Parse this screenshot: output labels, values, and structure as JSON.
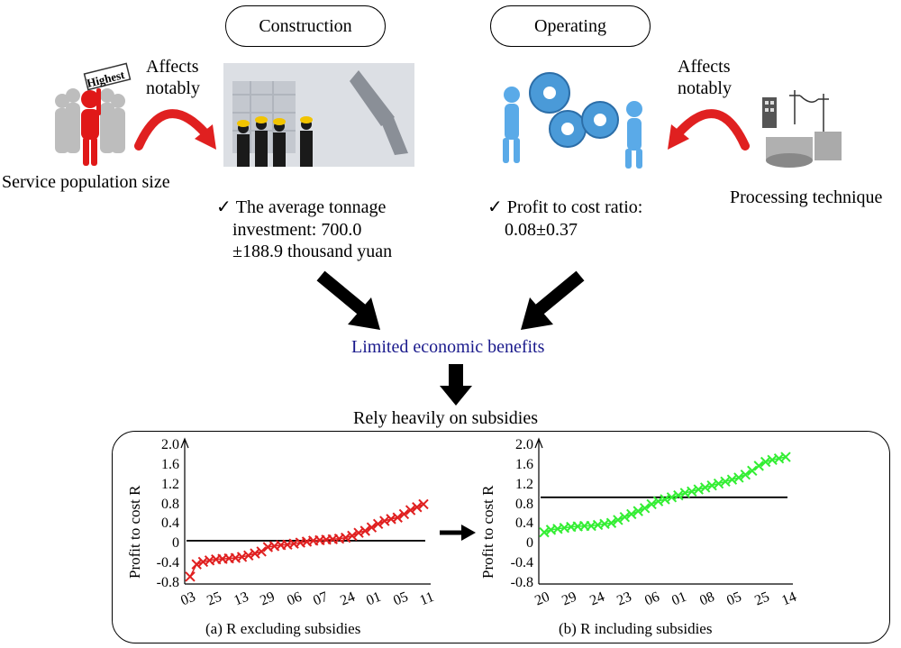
{
  "header": {
    "construction_label": "Construction",
    "operating_label": "Operating"
  },
  "left": {
    "affects_line1": "Affects",
    "affects_line2": "notably",
    "sign_text": "Highest",
    "factor_label": "Service population size",
    "check": "✓",
    "detail_line1": "The average tonnage",
    "detail_line2": "investment: 700.0",
    "detail_line3": "±188.9 thousand yuan"
  },
  "right": {
    "affects_line1": "Affects",
    "affects_line2": "notably",
    "factor_label": "Processing technique",
    "check": "✓",
    "detail_line1": "Profit to cost ratio:",
    "detail_line2": "0.08±0.37"
  },
  "center": {
    "limited_label": "Limited economic benefits",
    "rely_label": "Rely heavily on subsidies"
  },
  "colors": {
    "limited_text": "#1a1a8c",
    "curved_arrow": "#e02020",
    "series_a": "#e02020",
    "series_b": "#33ee33"
  },
  "chart_data": [
    {
      "type": "scatter",
      "caption": "(a) R excluding subsidies",
      "ylabel": "Profit to cost R",
      "ylim": [
        -0.8,
        2.0
      ],
      "yticks": [
        "2.0",
        "1.6",
        "1.2",
        "0.8",
        "0.4",
        "0",
        "-0.4",
        "-0.8"
      ],
      "xticks": [
        "03",
        "25",
        "13",
        "29",
        "06",
        "07",
        "24",
        "01",
        "05",
        "11"
      ],
      "reference_line": 0.08,
      "marker": "x",
      "values": [
        -0.65,
        -0.4,
        -0.35,
        -0.32,
        -0.3,
        -0.29,
        -0.28,
        -0.27,
        -0.25,
        -0.22,
        -0.18,
        -0.14,
        -0.05,
        -0.03,
        -0.01,
        0.0,
        0.02,
        0.04,
        0.06,
        0.08,
        0.09,
        0.1,
        0.11,
        0.12,
        0.14,
        0.18,
        0.24,
        0.28,
        0.35,
        0.42,
        0.48,
        0.52,
        0.55,
        0.62,
        0.7,
        0.76,
        0.82
      ]
    },
    {
      "type": "scatter",
      "caption": "(b) R including subsidies",
      "ylabel": "Profit to cost R",
      "ylim": [
        -0.8,
        2.0
      ],
      "yticks": [
        "2.0",
        "1.6",
        "1.2",
        "0.8",
        "0.4",
        "0",
        "-0.4",
        "-0.8"
      ],
      "xticks": [
        "20",
        "29",
        "24",
        "23",
        "06",
        "01",
        "08",
        "05",
        "25",
        "14"
      ],
      "reference_line": 0.96,
      "marker": "x",
      "values": [
        0.25,
        0.3,
        0.32,
        0.34,
        0.36,
        0.37,
        0.38,
        0.38,
        0.4,
        0.42,
        0.44,
        0.5,
        0.56,
        0.62,
        0.68,
        0.74,
        0.82,
        0.88,
        0.92,
        0.96,
        1.0,
        1.05,
        1.08,
        1.12,
        1.16,
        1.2,
        1.24,
        1.28,
        1.32,
        1.36,
        1.42,
        1.5,
        1.6,
        1.68,
        1.72,
        1.75,
        1.78
      ]
    }
  ]
}
